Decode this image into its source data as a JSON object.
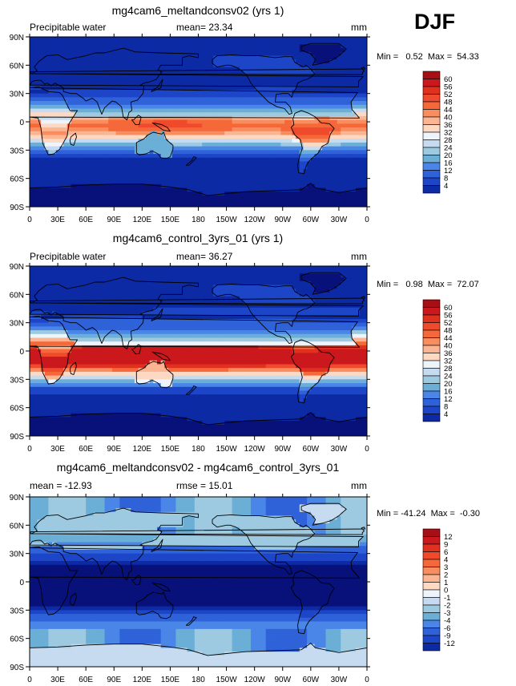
{
  "season": "DJF",
  "chart_data": [
    {
      "type": "heatmap",
      "title": "mg4cam6_meltandconsv02 (yrs 1)",
      "left_label": "Precipitable water",
      "center_label": "mean=  23.34",
      "right_label": "mm",
      "minmax": "Min =   0.52  Max =  54.33",
      "x_ticks": [
        "0",
        "30E",
        "60E",
        "90E",
        "120E",
        "150E",
        "180",
        "150W",
        "120W",
        "90W",
        "60W",
        "30W",
        "0"
      ],
      "y_ticks": [
        "90N",
        "60N",
        "30N",
        "0",
        "30S",
        "60S",
        "90S"
      ],
      "colorbar_levels": [
        "60",
        "56",
        "52",
        "48",
        "44",
        "40",
        "36",
        "32",
        "28",
        "24",
        "20",
        "16",
        "12",
        "8",
        "4"
      ],
      "colors": [
        "#a50f15",
        "#cb181d",
        "#e0301e",
        "#ef4a2b",
        "#f4683a",
        "#f88e5f",
        "#fbb593",
        "#fdd9c4",
        "#eef4fb",
        "#c6dbef",
        "#9ecae1",
        "#6baed6",
        "#4a86e8",
        "#2f62d9",
        "#1c46c7",
        "#0d2aa5",
        "#08107a"
      ],
      "field": "pw"
    },
    {
      "type": "heatmap",
      "title": "mg4cam6_control_3yrs_01 (yrs 1)",
      "left_label": "Precipitable water",
      "center_label": "mean=  36.27",
      "right_label": "mm",
      "minmax": "Min =   0.98  Max =  72.07",
      "x_ticks": [
        "0",
        "30E",
        "60E",
        "90E",
        "120E",
        "150E",
        "180",
        "150W",
        "120W",
        "90W",
        "60W",
        "30W",
        "0"
      ],
      "y_ticks": [
        "90N",
        "60N",
        "30N",
        "0",
        "30S",
        "60S",
        "90S"
      ],
      "colorbar_levels": [
        "60",
        "56",
        "52",
        "48",
        "44",
        "40",
        "36",
        "32",
        "28",
        "24",
        "20",
        "16",
        "12",
        "8",
        "4"
      ],
      "colors": [
        "#a50f15",
        "#cb181d",
        "#e0301e",
        "#ef4a2b",
        "#f4683a",
        "#f88e5f",
        "#fbb593",
        "#fdd9c4",
        "#eef4fb",
        "#c6dbef",
        "#9ecae1",
        "#6baed6",
        "#4a86e8",
        "#2f62d9",
        "#1c46c7",
        "#0d2aa5",
        "#08107a"
      ],
      "field": "pw_control"
    },
    {
      "type": "heatmap",
      "title": "mg4cam6_meltandconsv02 - mg4cam6_control_3yrs_01",
      "left_label": "mean =  -12.93",
      "center_label": "rmse =   15.01",
      "right_label": "mm",
      "minmax": "Min = -41.24  Max =  -0.30",
      "x_ticks": [
        "0",
        "30E",
        "60E",
        "90E",
        "120E",
        "150E",
        "180",
        "150W",
        "120W",
        "90W",
        "60W",
        "30W",
        "0"
      ],
      "y_ticks": [
        "90N",
        "60N",
        "30N",
        "0",
        "30S",
        "60S",
        "90S"
      ],
      "colorbar_levels": [
        "12",
        "9",
        "6",
        "4",
        "3",
        "2",
        "1",
        "0",
        "-1",
        "-2",
        "-3",
        "-4",
        "-6",
        "-9",
        "-12"
      ],
      "colors": [
        "#a50f15",
        "#cb181d",
        "#e0301e",
        "#ef4a2b",
        "#f4683a",
        "#f88e5f",
        "#fbb593",
        "#fdd9c4",
        "#eef4fb",
        "#c6dbef",
        "#9ecae1",
        "#6baed6",
        "#4a86e8",
        "#2f62d9",
        "#1c46c7",
        "#0d2aa5",
        "#08107a"
      ],
      "field": "diff"
    }
  ]
}
